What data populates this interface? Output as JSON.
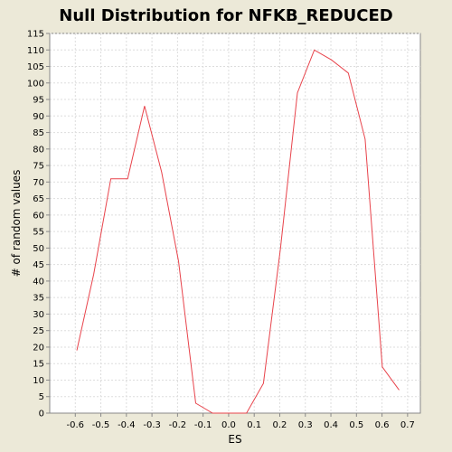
{
  "chart_data": {
    "type": "line",
    "title": "Null Distribution for NFKB_REDUCED",
    "xlabel": "ES",
    "ylabel": "# of random values",
    "xlim": [
      -0.7,
      0.75
    ],
    "ylim": [
      0,
      115
    ],
    "x_ticks": [
      -0.6,
      -0.5,
      -0.4,
      -0.3,
      -0.2,
      -0.1,
      0.0,
      0.1,
      0.2,
      0.3,
      0.4,
      0.5,
      0.6,
      0.7
    ],
    "x_tick_labels": [
      "-0.6",
      "-0.5",
      "-0.4",
      "-0.3",
      "-0.2",
      "-0.1",
      "0.0",
      "0.1",
      "0.2",
      "0.3",
      "0.4",
      "0.5",
      "0.6",
      "0.7"
    ],
    "y_ticks": [
      0,
      5,
      10,
      15,
      20,
      25,
      30,
      35,
      40,
      45,
      50,
      55,
      60,
      65,
      70,
      75,
      80,
      85,
      90,
      95,
      100,
      105,
      110,
      115
    ],
    "grid": true,
    "series": [
      {
        "color": "#E8434B",
        "x": [
          -0.594,
          -0.528,
          -0.461,
          -0.395,
          -0.329,
          -0.262,
          -0.196,
          -0.129,
          -0.063,
          0.003,
          0.07,
          0.136,
          0.203,
          0.269,
          0.335,
          0.402,
          0.468,
          0.534,
          0.601,
          0.667
        ],
        "y": [
          19,
          42,
          71,
          71,
          93,
          73,
          46,
          3,
          0,
          0,
          0,
          9,
          50,
          97,
          110,
          107,
          103,
          83,
          14,
          7
        ]
      }
    ]
  }
}
